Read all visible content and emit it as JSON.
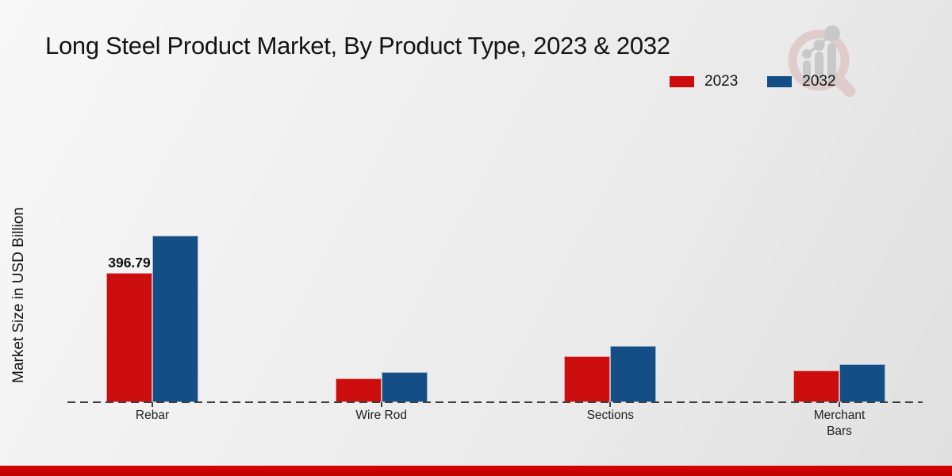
{
  "page": {
    "title": "Long Steel Product Market, By Product Type, 2023 & 2032"
  },
  "ylabel": "Market Size in USD Billion",
  "legend": {
    "items": [
      {
        "label": "2023",
        "color": "#cc0d0d"
      },
      {
        "label": "2032",
        "color": "#134e87"
      }
    ]
  },
  "watermark_icon": "magnifier-bar-chart-logo",
  "chart_data": {
    "type": "bar",
    "title": "Long Steel Product Market, By Product Type, 2023 & 2032",
    "categories": [
      "Rebar",
      "Wire Rod",
      "Sections",
      "Merchant Bars"
    ],
    "series": [
      {
        "name": "2023",
        "color": "#cc0d0d",
        "values": [
          396.79,
          74,
          142,
          98
        ]
      },
      {
        "name": "2032",
        "color": "#134e87",
        "values": [
          512,
          93,
          174,
          118
        ]
      }
    ],
    "xlabel": "",
    "ylabel": "Market Size in USD Billion",
    "ylim": [
      0,
      560
    ],
    "grid": false,
    "baseline_style": "dashed",
    "legend_position": "top-right",
    "annotations": [
      {
        "series": "2023",
        "category": "Rebar",
        "text": "396.79"
      }
    ]
  },
  "footer": {
    "bar_color": "#c00000"
  }
}
